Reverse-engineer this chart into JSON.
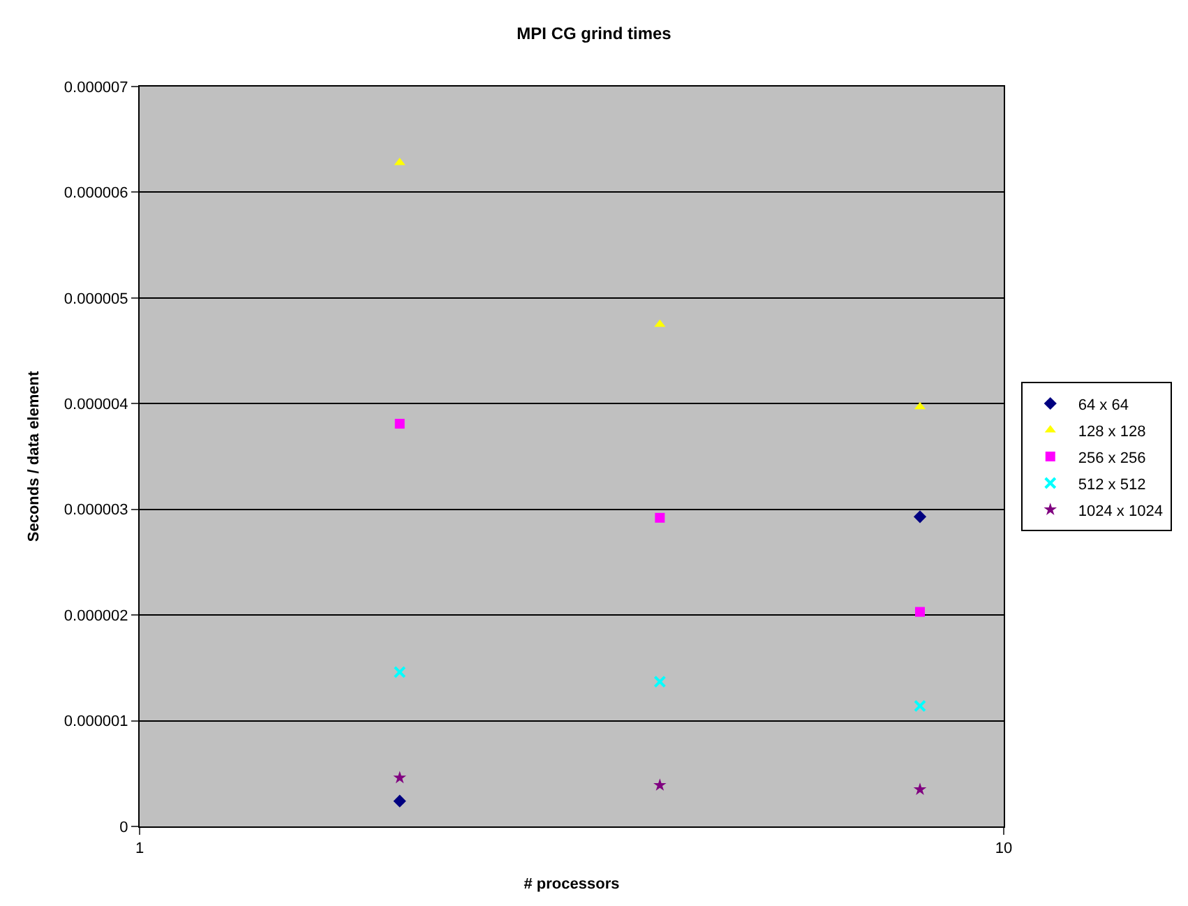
{
  "chart_data": {
    "type": "scatter",
    "title": "MPI CG grind times",
    "xlabel": "# processors",
    "ylabel": "Seconds / data element",
    "x": [
      2,
      4,
      8
    ],
    "log": "x",
    "xlim": [
      1,
      10
    ],
    "xticks": [
      1,
      10
    ],
    "ylim": [
      0,
      7e-06
    ],
    "yticks": [
      0,
      {
        "value": 1e-06,
        "label": "0.000001"
      },
      {
        "value": 2e-06,
        "label": "0.000002"
      },
      {
        "value": 3e-06,
        "label": "0.000003"
      },
      {
        "value": 4e-06,
        "label": "0.000004"
      },
      {
        "value": 5e-06,
        "label": "0.000005"
      },
      {
        "value": 6e-06,
        "label": "0.000006"
      },
      {
        "value": 7e-06,
        "label": "0.000007"
      }
    ],
    "grid": "y",
    "legend": "right",
    "series": [
      {
        "name": "64 x 64",
        "color": "#000080",
        "marker": "diamond",
        "values": [
          2.4e-07,
          null,
          2.93e-06
        ]
      },
      {
        "name": "128 x 128",
        "color": "#ffff00",
        "marker": "triangle",
        "values": [
          6.28e-06,
          4.75e-06,
          3.97e-06
        ]
      },
      {
        "name": "256 x 256",
        "color": "#ff00ff",
        "marker": "square",
        "values": [
          3.81e-06,
          2.92e-06,
          2.03e-06
        ]
      },
      {
        "name": "512 x 512",
        "color": "#00ffff",
        "marker": "cross",
        "values": [
          1.46e-06,
          1.37e-06,
          1.14e-06
        ]
      },
      {
        "name": "1024 x 1024",
        "color": "#800080",
        "marker": "star",
        "values": [
          4.6e-07,
          3.9e-07,
          3.5e-07
        ]
      }
    ]
  }
}
